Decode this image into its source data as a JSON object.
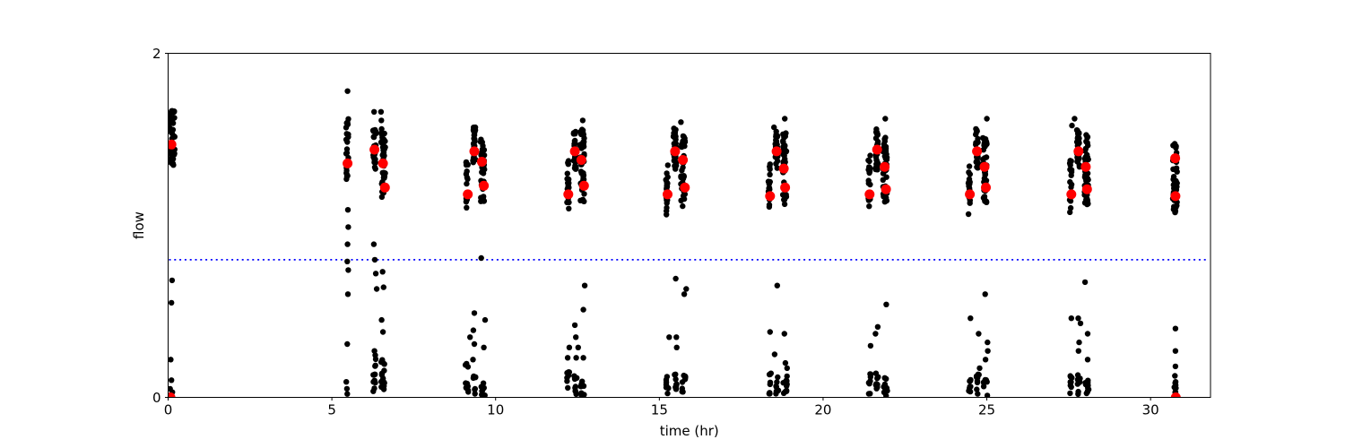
{
  "figure": {
    "background": "#ffffff",
    "plot_background": "#ffffff"
  },
  "chart_data": {
    "type": "scatter",
    "title": "",
    "xlabel": "time (hr)",
    "ylabel": "flow",
    "xlim": [
      0,
      31.83
    ],
    "ylim": [
      0,
      2
    ],
    "grid": false,
    "legend": null,
    "x_ticks": [
      {
        "value": 0,
        "label": "0"
      },
      {
        "value": 5,
        "label": "5"
      },
      {
        "value": 10,
        "label": "10"
      },
      {
        "value": 15,
        "label": "15"
      },
      {
        "value": 20,
        "label": "20"
      },
      {
        "value": 25,
        "label": "25"
      },
      {
        "value": 30,
        "label": "30"
      }
    ],
    "y_ticks": [
      {
        "value": 0,
        "label": "0"
      },
      {
        "value": 2,
        "label": "2"
      }
    ],
    "colors": {
      "black_points": "#000000",
      "red_points": "#ff0000",
      "threshold_line": "#0000ff",
      "axis": "#000000"
    },
    "threshold_line": {
      "y": 0.8,
      "style": "dotted"
    },
    "black_streaks": [
      {
        "x": 0.02,
        "xw": 0.18,
        "ymin": 1.33,
        "ymax": 1.67,
        "n": 50
      },
      {
        "x": 5.43,
        "xw": 0.08,
        "ymin": 1.25,
        "ymax": 1.64,
        "n": 22
      },
      {
        "x": 6.26,
        "xw": 0.09,
        "ymin": 1.32,
        "ymax": 1.57,
        "n": 30
      },
      {
        "x": 6.5,
        "xw": 0.13,
        "ymin": 1.16,
        "ymax": 1.54,
        "n": 42
      },
      {
        "x": 6.26,
        "xw": 0.09,
        "ymin": 0.02,
        "ymax": 0.27,
        "n": 12
      },
      {
        "x": 6.5,
        "xw": 0.14,
        "ymin": 0.01,
        "ymax": 0.22,
        "n": 14
      },
      {
        "x": 9.1,
        "xw": 0.06,
        "ymin": 1.09,
        "ymax": 1.38,
        "n": 18
      },
      {
        "x": 9.3,
        "xw": 0.09,
        "ymin": 1.36,
        "ymax": 1.57,
        "n": 28
      },
      {
        "x": 9.54,
        "xw": 0.12,
        "ymin": 1.13,
        "ymax": 1.53,
        "n": 42
      },
      {
        "x": 9.08,
        "xw": 0.1,
        "ymin": 0.02,
        "ymax": 0.2,
        "n": 9
      },
      {
        "x": 9.3,
        "xw": 0.09,
        "ymin": 0.02,
        "ymax": 0.16,
        "n": 7
      },
      {
        "x": 9.56,
        "xw": 0.12,
        "ymin": 0.01,
        "ymax": 0.12,
        "n": 8
      },
      {
        "x": 12.18,
        "xw": 0.06,
        "ymin": 1.07,
        "ymax": 1.39,
        "n": 18
      },
      {
        "x": 12.38,
        "xw": 0.08,
        "ymin": 1.32,
        "ymax": 1.56,
        "n": 28
      },
      {
        "x": 12.58,
        "xw": 0.13,
        "ymin": 1.13,
        "ymax": 1.57,
        "n": 42
      },
      {
        "x": 12.18,
        "xw": 0.07,
        "ymin": 0.02,
        "ymax": 0.15,
        "n": 8
      },
      {
        "x": 12.4,
        "xw": 0.08,
        "ymin": 0.01,
        "ymax": 0.14,
        "n": 8
      },
      {
        "x": 12.6,
        "xw": 0.12,
        "ymin": 0.01,
        "ymax": 0.13,
        "n": 9
      },
      {
        "x": 15.2,
        "xw": 0.06,
        "ymin": 1.06,
        "ymax": 1.35,
        "n": 18
      },
      {
        "x": 15.43,
        "xw": 0.09,
        "ymin": 1.32,
        "ymax": 1.57,
        "n": 28
      },
      {
        "x": 15.66,
        "xw": 0.13,
        "ymin": 1.11,
        "ymax": 1.53,
        "n": 42
      },
      {
        "x": 15.21,
        "xw": 0.07,
        "ymin": 0.01,
        "ymax": 0.15,
        "n": 8
      },
      {
        "x": 15.45,
        "xw": 0.09,
        "ymin": 0.01,
        "ymax": 0.14,
        "n": 9
      },
      {
        "x": 15.68,
        "xw": 0.12,
        "ymin": 0.01,
        "ymax": 0.13,
        "n": 9
      },
      {
        "x": 18.33,
        "xw": 0.06,
        "ymin": 1.08,
        "ymax": 1.37,
        "n": 18
      },
      {
        "x": 18.54,
        "xw": 0.08,
        "ymin": 1.33,
        "ymax": 1.55,
        "n": 28
      },
      {
        "x": 18.76,
        "xw": 0.12,
        "ymin": 1.12,
        "ymax": 1.55,
        "n": 42
      },
      {
        "x": 18.34,
        "xw": 0.07,
        "ymin": 0.02,
        "ymax": 0.15,
        "n": 8
      },
      {
        "x": 18.56,
        "xw": 0.08,
        "ymin": 0.01,
        "ymax": 0.13,
        "n": 8
      },
      {
        "x": 18.78,
        "xw": 0.12,
        "ymin": 0.01,
        "ymax": 0.13,
        "n": 10
      },
      {
        "x": 21.38,
        "xw": 0.06,
        "ymin": 1.05,
        "ymax": 1.41,
        "n": 18
      },
      {
        "x": 21.6,
        "xw": 0.08,
        "ymin": 1.32,
        "ymax": 1.58,
        "n": 28
      },
      {
        "x": 21.83,
        "xw": 0.12,
        "ymin": 1.13,
        "ymax": 1.54,
        "n": 42
      },
      {
        "x": 21.39,
        "xw": 0.07,
        "ymin": 0.02,
        "ymax": 0.16,
        "n": 8
      },
      {
        "x": 21.61,
        "xw": 0.08,
        "ymin": 0.01,
        "ymax": 0.14,
        "n": 8
      },
      {
        "x": 21.85,
        "xw": 0.12,
        "ymin": 0.01,
        "ymax": 0.13,
        "n": 10
      },
      {
        "x": 24.43,
        "xw": 0.06,
        "ymin": 1.06,
        "ymax": 1.35,
        "n": 18
      },
      {
        "x": 24.66,
        "xw": 0.08,
        "ymin": 1.33,
        "ymax": 1.57,
        "n": 28
      },
      {
        "x": 24.88,
        "xw": 0.12,
        "ymin": 1.13,
        "ymax": 1.55,
        "n": 42
      },
      {
        "x": 24.44,
        "xw": 0.07,
        "ymin": 0.02,
        "ymax": 0.15,
        "n": 8
      },
      {
        "x": 24.68,
        "xw": 0.08,
        "ymin": 0.01,
        "ymax": 0.14,
        "n": 9
      },
      {
        "x": 24.9,
        "xw": 0.12,
        "ymin": 0.01,
        "ymax": 0.12,
        "n": 9
      },
      {
        "x": 27.53,
        "xw": 0.06,
        "ymin": 1.07,
        "ymax": 1.38,
        "n": 18
      },
      {
        "x": 27.75,
        "xw": 0.08,
        "ymin": 1.33,
        "ymax": 1.56,
        "n": 28
      },
      {
        "x": 27.98,
        "xw": 0.12,
        "ymin": 1.12,
        "ymax": 1.53,
        "n": 42
      },
      {
        "x": 27.54,
        "xw": 0.07,
        "ymin": 0.02,
        "ymax": 0.15,
        "n": 9
      },
      {
        "x": 27.77,
        "xw": 0.08,
        "ymin": 0.01,
        "ymax": 0.14,
        "n": 9
      },
      {
        "x": 28.0,
        "xw": 0.12,
        "ymin": 0.01,
        "ymax": 0.13,
        "n": 10
      },
      {
        "x": 30.68,
        "xw": 0.13,
        "ymin": 1.07,
        "ymax": 1.49,
        "n": 48
      },
      {
        "x": 30.72,
        "xw": 0.07,
        "ymin": 0.0,
        "ymax": 0.14,
        "n": 10
      }
    ],
    "black_points": [
      [
        0.12,
        0.68
      ],
      [
        0.1,
        0.55
      ],
      [
        0.08,
        0.22
      ],
      [
        0.1,
        0.1
      ],
      [
        0.06,
        0.05
      ],
      [
        0.13,
        0.03
      ],
      [
        5.48,
        1.78
      ],
      [
        6.29,
        1.66
      ],
      [
        6.5,
        1.66
      ],
      [
        6.51,
        1.61
      ],
      [
        6.52,
        1.56
      ],
      [
        5.49,
        1.09
      ],
      [
        5.5,
        0.99
      ],
      [
        5.48,
        0.89
      ],
      [
        5.47,
        0.79
      ],
      [
        5.5,
        0.74
      ],
      [
        5.49,
        0.6
      ],
      [
        5.47,
        0.31
      ],
      [
        5.44,
        0.09
      ],
      [
        5.46,
        0.05
      ],
      [
        5.47,
        0.02
      ],
      [
        6.28,
        0.89
      ],
      [
        6.31,
        0.8
      ],
      [
        6.34,
        0.72
      ],
      [
        6.37,
        0.63
      ],
      [
        6.55,
        0.73
      ],
      [
        6.58,
        0.64
      ],
      [
        6.52,
        0.45
      ],
      [
        6.56,
        0.38
      ],
      [
        6.3,
        0.27
      ],
      [
        9.38,
        1.57
      ],
      [
        9.56,
        0.81
      ],
      [
        9.35,
        0.49
      ],
      [
        9.68,
        0.45
      ],
      [
        9.32,
        0.39
      ],
      [
        9.22,
        0.35
      ],
      [
        9.35,
        0.31
      ],
      [
        9.64,
        0.29
      ],
      [
        9.31,
        0.22
      ],
      [
        12.66,
        1.61
      ],
      [
        12.72,
        0.65
      ],
      [
        12.68,
        0.51
      ],
      [
        12.42,
        0.42
      ],
      [
        12.45,
        0.35
      ],
      [
        12.25,
        0.29
      ],
      [
        12.52,
        0.29
      ],
      [
        12.2,
        0.23
      ],
      [
        12.46,
        0.23
      ],
      [
        12.68,
        0.23
      ],
      [
        15.66,
        1.6
      ],
      [
        15.5,
        0.69
      ],
      [
        15.82,
        0.63
      ],
      [
        15.76,
        0.6
      ],
      [
        15.3,
        0.35
      ],
      [
        15.52,
        0.35
      ],
      [
        15.53,
        0.29
      ],
      [
        18.83,
        1.62
      ],
      [
        18.5,
        1.57
      ],
      [
        18.6,
        0.65
      ],
      [
        18.38,
        0.38
      ],
      [
        18.82,
        0.37
      ],
      [
        18.52,
        0.25
      ],
      [
        18.85,
        0.2
      ],
      [
        18.9,
        0.17
      ],
      [
        21.9,
        1.62
      ],
      [
        21.93,
        0.54
      ],
      [
        21.67,
        0.41
      ],
      [
        21.6,
        0.37
      ],
      [
        21.45,
        0.3
      ],
      [
        25.0,
        1.62
      ],
      [
        24.95,
        0.6
      ],
      [
        24.5,
        0.46
      ],
      [
        24.75,
        0.37
      ],
      [
        25.02,
        0.32
      ],
      [
        25.03,
        0.27
      ],
      [
        24.96,
        0.22
      ],
      [
        24.78,
        0.17
      ],
      [
        27.68,
        1.62
      ],
      [
        27.6,
        1.58
      ],
      [
        28.0,
        0.67
      ],
      [
        27.58,
        0.46
      ],
      [
        27.79,
        0.46
      ],
      [
        27.86,
        0.43
      ],
      [
        28.08,
        0.37
      ],
      [
        27.82,
        0.32
      ],
      [
        27.8,
        0.27
      ],
      [
        28.08,
        0.22
      ],
      [
        30.76,
        0.4
      ],
      [
        30.76,
        0.27
      ],
      [
        30.76,
        0.18
      ]
    ],
    "red_points": [
      [
        0.1,
        1.47
      ],
      [
        0.07,
        0.0
      ],
      [
        5.48,
        1.36
      ],
      [
        6.3,
        1.44
      ],
      [
        6.56,
        1.36
      ],
      [
        6.62,
        1.22
      ],
      [
        9.15,
        1.18
      ],
      [
        9.35,
        1.43
      ],
      [
        9.58,
        1.37
      ],
      [
        9.64,
        1.23
      ],
      [
        12.22,
        1.18
      ],
      [
        12.42,
        1.43
      ],
      [
        12.62,
        1.38
      ],
      [
        12.7,
        1.23
      ],
      [
        15.25,
        1.18
      ],
      [
        15.48,
        1.43
      ],
      [
        15.72,
        1.38
      ],
      [
        15.78,
        1.22
      ],
      [
        18.38,
        1.17
      ],
      [
        18.58,
        1.43
      ],
      [
        18.8,
        1.33
      ],
      [
        18.84,
        1.22
      ],
      [
        21.42,
        1.18
      ],
      [
        21.65,
        1.44
      ],
      [
        21.88,
        1.34
      ],
      [
        21.92,
        1.21
      ],
      [
        24.48,
        1.18
      ],
      [
        24.7,
        1.43
      ],
      [
        24.93,
        1.34
      ],
      [
        24.97,
        1.22
      ],
      [
        27.58,
        1.18
      ],
      [
        27.8,
        1.43
      ],
      [
        28.02,
        1.34
      ],
      [
        28.06,
        1.21
      ],
      [
        30.75,
        1.39
      ],
      [
        30.76,
        1.17
      ],
      [
        30.77,
        0.0
      ]
    ]
  }
}
